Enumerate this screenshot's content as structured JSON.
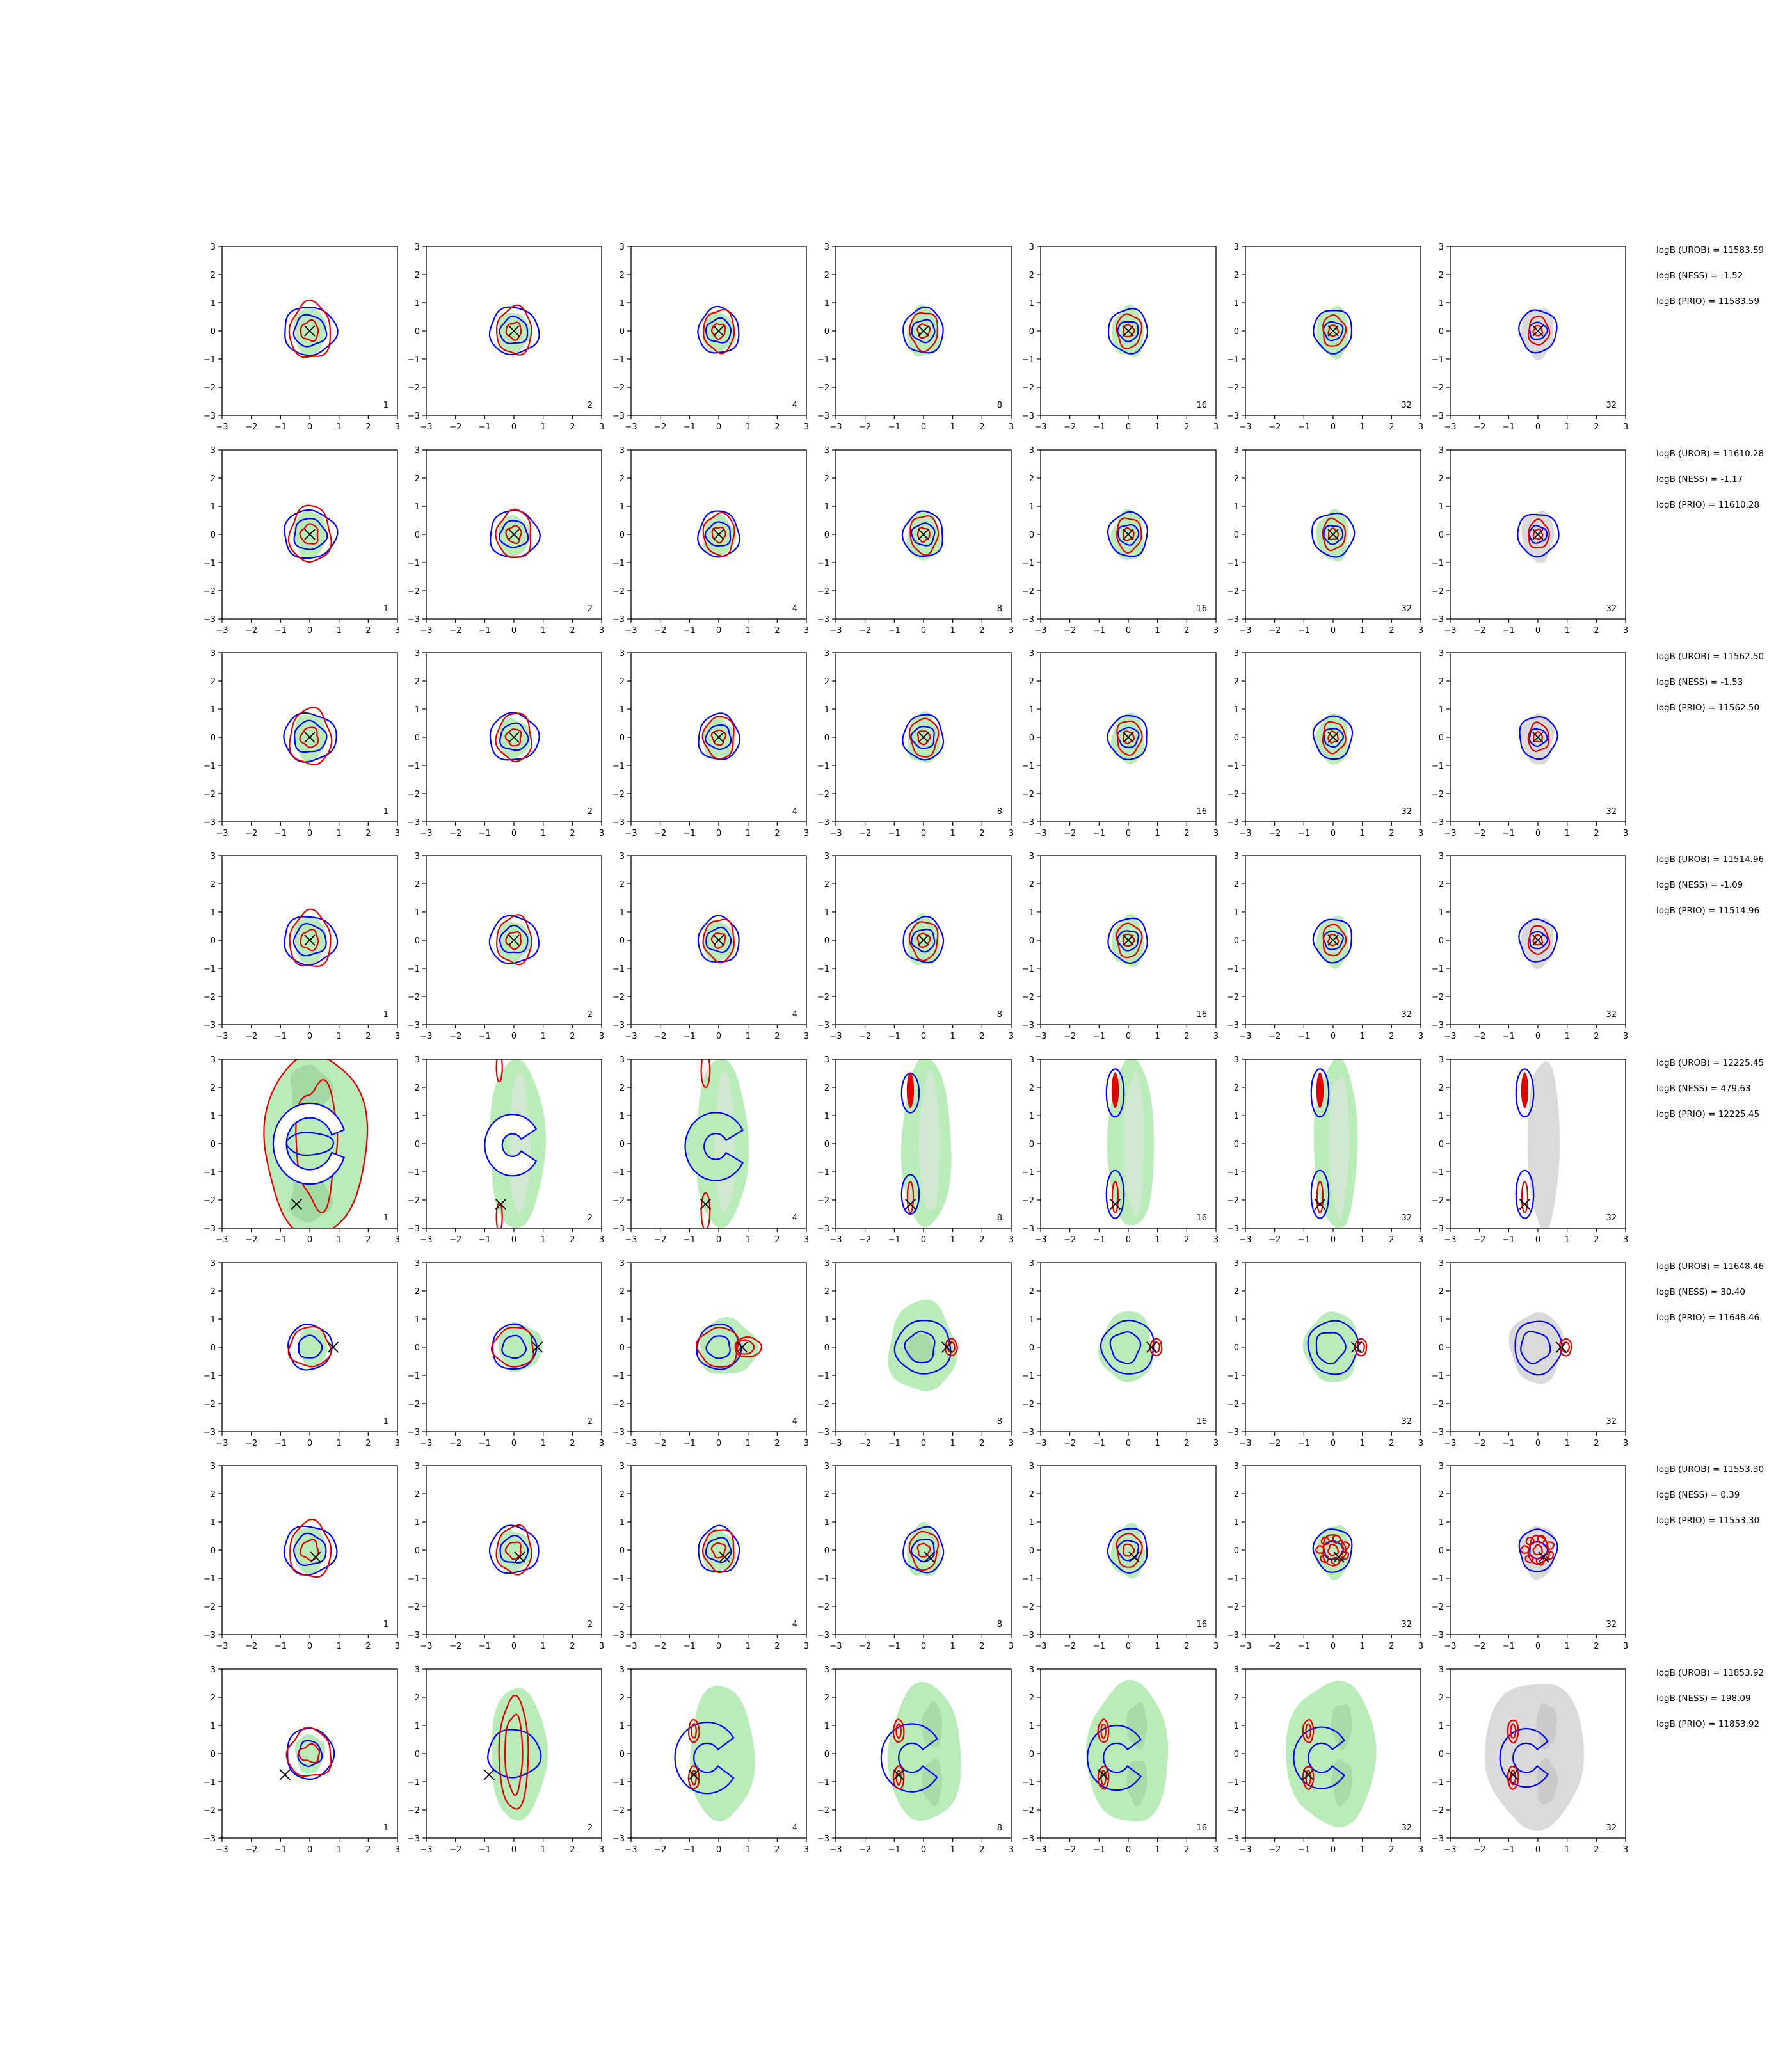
{
  "colors": {
    "urob_contour": "#0000ff",
    "prio_contour": "#e00000",
    "ness_fill": "#b9ecb9",
    "ness_fill_inner": "#a3d9a3",
    "gray_fill": "#dadada",
    "marker": "#000000",
    "axes": "#000000"
  },
  "chart_data": {
    "type": "contour-grid",
    "rows": 8,
    "cols": 7,
    "xlim": [
      -3,
      3
    ],
    "ylim": [
      -3,
      3
    ],
    "ticks": [
      "−3",
      "−2",
      "−1",
      "0",
      "1",
      "2",
      "3"
    ],
    "tick_values": [
      -3,
      -2,
      -1,
      0,
      1,
      2,
      3
    ],
    "panel_labels": [
      "1",
      "2",
      "4",
      "8",
      "16",
      "32",
      "32"
    ],
    "annotations": [
      {
        "urob": "logB (UROB) = 11583.59",
        "ness": "logB (NESS) = -1.52",
        "prio": "logB (PRIO) = 11583.59",
        "marker": [
          0,
          0
        ],
        "kind": "central"
      },
      {
        "urob": "logB (UROB) = 11610.28",
        "ness": "logB (NESS) = -1.17",
        "prio": "logB (PRIO) = 11610.28",
        "marker": [
          0,
          0
        ],
        "kind": "central"
      },
      {
        "urob": "logB (UROB) = 11562.50",
        "ness": "logB (NESS) = -1.53",
        "prio": "logB (PRIO) = 11562.50",
        "marker": [
          0,
          0
        ],
        "kind": "central"
      },
      {
        "urob": "logB (UROB) = 11514.96",
        "ness": "logB (NESS) = -1.09",
        "prio": "logB (PRIO) = 11514.96",
        "marker": [
          0,
          0
        ],
        "kind": "central"
      },
      {
        "urob": "logB (UROB) = 12225.45",
        "ness": "logB (NESS) = 479.63",
        "prio": "logB (PRIO) = 12225.45",
        "marker": [
          -0.45,
          -2.15
        ],
        "kind": "bimodal"
      },
      {
        "urob": "logB (UROB) = 11648.46",
        "ness": "logB (NESS) = 30.40",
        "prio": "logB (PRIO) = 11648.46",
        "marker": [
          0.8,
          0
        ],
        "kind": "shift-right"
      },
      {
        "urob": "logB (UROB) = 11553.30",
        "ness": "logB (NESS) = 0.39",
        "prio": "logB (PRIO) = 11553.30",
        "marker": [
          0.2,
          -0.25
        ],
        "kind": "offset"
      },
      {
        "urob": "logB (UROB) = 11853.92",
        "ness": "logB (NESS) = 198.09",
        "prio": "logB (PRIO) = 11853.92",
        "marker": [
          -0.85,
          -0.75
        ],
        "kind": "crescent"
      }
    ]
  }
}
